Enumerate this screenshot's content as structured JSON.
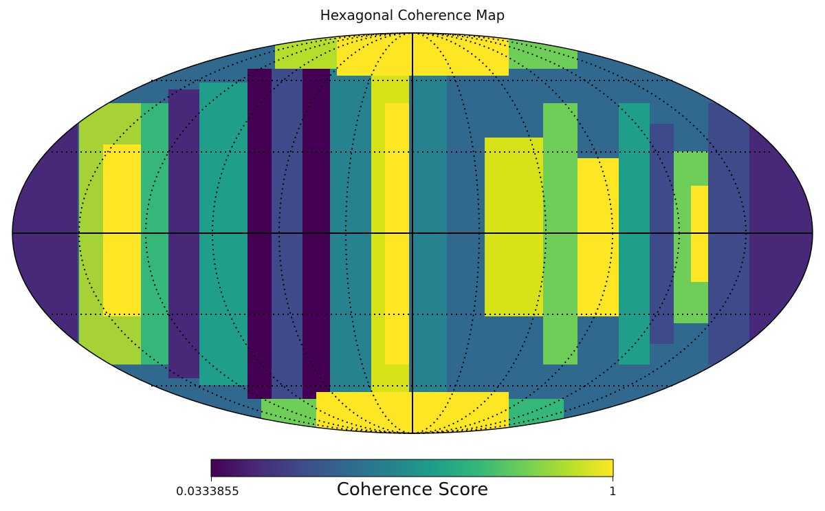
{
  "title": "Hexagonal Coherence Map",
  "colorbar": {
    "label": "Coherence Score",
    "min_label": "0.0333855",
    "max_label": "1",
    "min": 0.0333855,
    "max": 1,
    "colormap": "viridis"
  },
  "map": {
    "projection": "mollweide",
    "graticule": "dotted",
    "meridian_and_equator": "solid"
  },
  "colors": {
    "viridis": [
      "#440154",
      "#482878",
      "#3e4a89",
      "#31688e",
      "#26828e",
      "#1f9e89",
      "#35b779",
      "#6ece58",
      "#b5de2b",
      "#fde725"
    ]
  }
}
